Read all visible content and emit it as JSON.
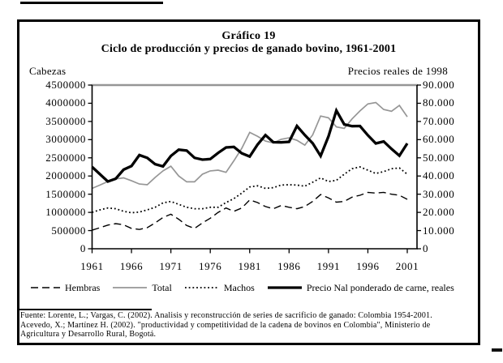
{
  "figure": {
    "title_line1": "Gráfico 19",
    "title_line2": "Ciclo de producción y precios de ganado bovino, 1961-2001",
    "left_axis_title": "Cabezas",
    "right_axis_title": "Precios reales de 1998",
    "source_line1": "Fuente: Lorente, L.; Vargas, C. (2002). Analisis y reconstrucción de series de sacrificio de ganado: Colombia 1954-2001.",
    "source_line2": "Acevedo, X.; Martínez H. (2002). \"productividad y competitividad de la cadena  de bovinos en Colombia\", Ministerio de",
    "source_line3": "Agricultura y Desarrollo Rural, Bogotá."
  },
  "colors": {
    "ink": "#000000",
    "line_gray": "#969696",
    "background": "#ffffff"
  },
  "chart_data": {
    "type": "line",
    "x": [
      1961,
      1962,
      1963,
      1964,
      1965,
      1966,
      1967,
      1968,
      1969,
      1970,
      1971,
      1972,
      1973,
      1974,
      1975,
      1976,
      1977,
      1978,
      1979,
      1980,
      1981,
      1982,
      1983,
      1984,
      1985,
      1986,
      1987,
      1988,
      1989,
      1990,
      1991,
      1992,
      1993,
      1994,
      1995,
      1996,
      1997,
      1998,
      1999,
      2000,
      2001
    ],
    "x_tick_labels": [
      "1961",
      "1966",
      "1971",
      "1976",
      "1981",
      "1986",
      "1991",
      "1996",
      "2001"
    ],
    "grid": false,
    "legend_position": "bottom",
    "left_axis": {
      "title": "Cabezas",
      "range": [
        0,
        4500000
      ],
      "tick_labels": [
        "4500000",
        "4000000",
        "3500000",
        "3000000",
        "2500000",
        "2000000",
        "1500000",
        "1000000",
        "500000",
        "0"
      ]
    },
    "right_axis": {
      "title": "Precios reales de 1998",
      "range": [
        0,
        90
      ],
      "tick_labels": [
        "90.000",
        "80.000",
        "70.000",
        "60.000",
        "50.000",
        "40.000",
        "30.000",
        "20.000",
        "10.000",
        "0"
      ]
    },
    "series": [
      {
        "name": "Hembras",
        "axis": "left",
        "style": "long-dash",
        "color": "#000000",
        "values": [
          510000,
          580000,
          650000,
          690000,
          660000,
          560000,
          530000,
          580000,
          710000,
          860000,
          950000,
          810000,
          640000,
          560000,
          710000,
          840000,
          1000000,
          1120000,
          1030000,
          1120000,
          1340000,
          1270000,
          1160000,
          1100000,
          1190000,
          1140000,
          1100000,
          1160000,
          1300000,
          1490000,
          1400000,
          1280000,
          1300000,
          1420000,
          1470000,
          1550000,
          1530000,
          1550000,
          1500000,
          1470000,
          1360000
        ]
      },
      {
        "name": "Total",
        "axis": "left",
        "style": "solid",
        "color": "#969696",
        "values": [
          1660000,
          1750000,
          1850000,
          1920000,
          1950000,
          1870000,
          1780000,
          1760000,
          1960000,
          2140000,
          2270000,
          2000000,
          1840000,
          1840000,
          2050000,
          2140000,
          2160000,
          2100000,
          2420000,
          2760000,
          3200000,
          3090000,
          2960000,
          2910000,
          3010000,
          3050000,
          2980000,
          2850000,
          3130000,
          3650000,
          3600000,
          3350000,
          3310000,
          3570000,
          3790000,
          3980000,
          4020000,
          3830000,
          3780000,
          3940000,
          3630000
        ]
      },
      {
        "name": "Machos",
        "axis": "left",
        "style": "dotted",
        "color": "#000000",
        "values": [
          1000000,
          1070000,
          1120000,
          1100000,
          1030000,
          990000,
          1010000,
          1070000,
          1140000,
          1260000,
          1300000,
          1220000,
          1140000,
          1100000,
          1100000,
          1140000,
          1140000,
          1270000,
          1380000,
          1530000,
          1700000,
          1730000,
          1660000,
          1680000,
          1750000,
          1760000,
          1750000,
          1720000,
          1830000,
          1950000,
          1850000,
          1880000,
          2050000,
          2200000,
          2250000,
          2160000,
          2070000,
          2120000,
          2200000,
          2220000,
          2050000
        ]
      },
      {
        "name": "Precio Nal ponderado de carne, reales",
        "axis": "right",
        "style": "thick-solid",
        "color": "#000000",
        "values": [
          45,
          41,
          37,
          38.5,
          43.5,
          45.5,
          51.5,
          50,
          46.5,
          45.3,
          51,
          54.5,
          54,
          50,
          49,
          49.3,
          52.7,
          55.7,
          56,
          52.5,
          50.7,
          57.3,
          62.5,
          58.6,
          58.5,
          58.8,
          67.5,
          62.5,
          58,
          51,
          61.8,
          76,
          68.4,
          67.4,
          67.5,
          62.4,
          57.9,
          59,
          54.9,
          51.2,
          57.9
        ]
      }
    ]
  }
}
